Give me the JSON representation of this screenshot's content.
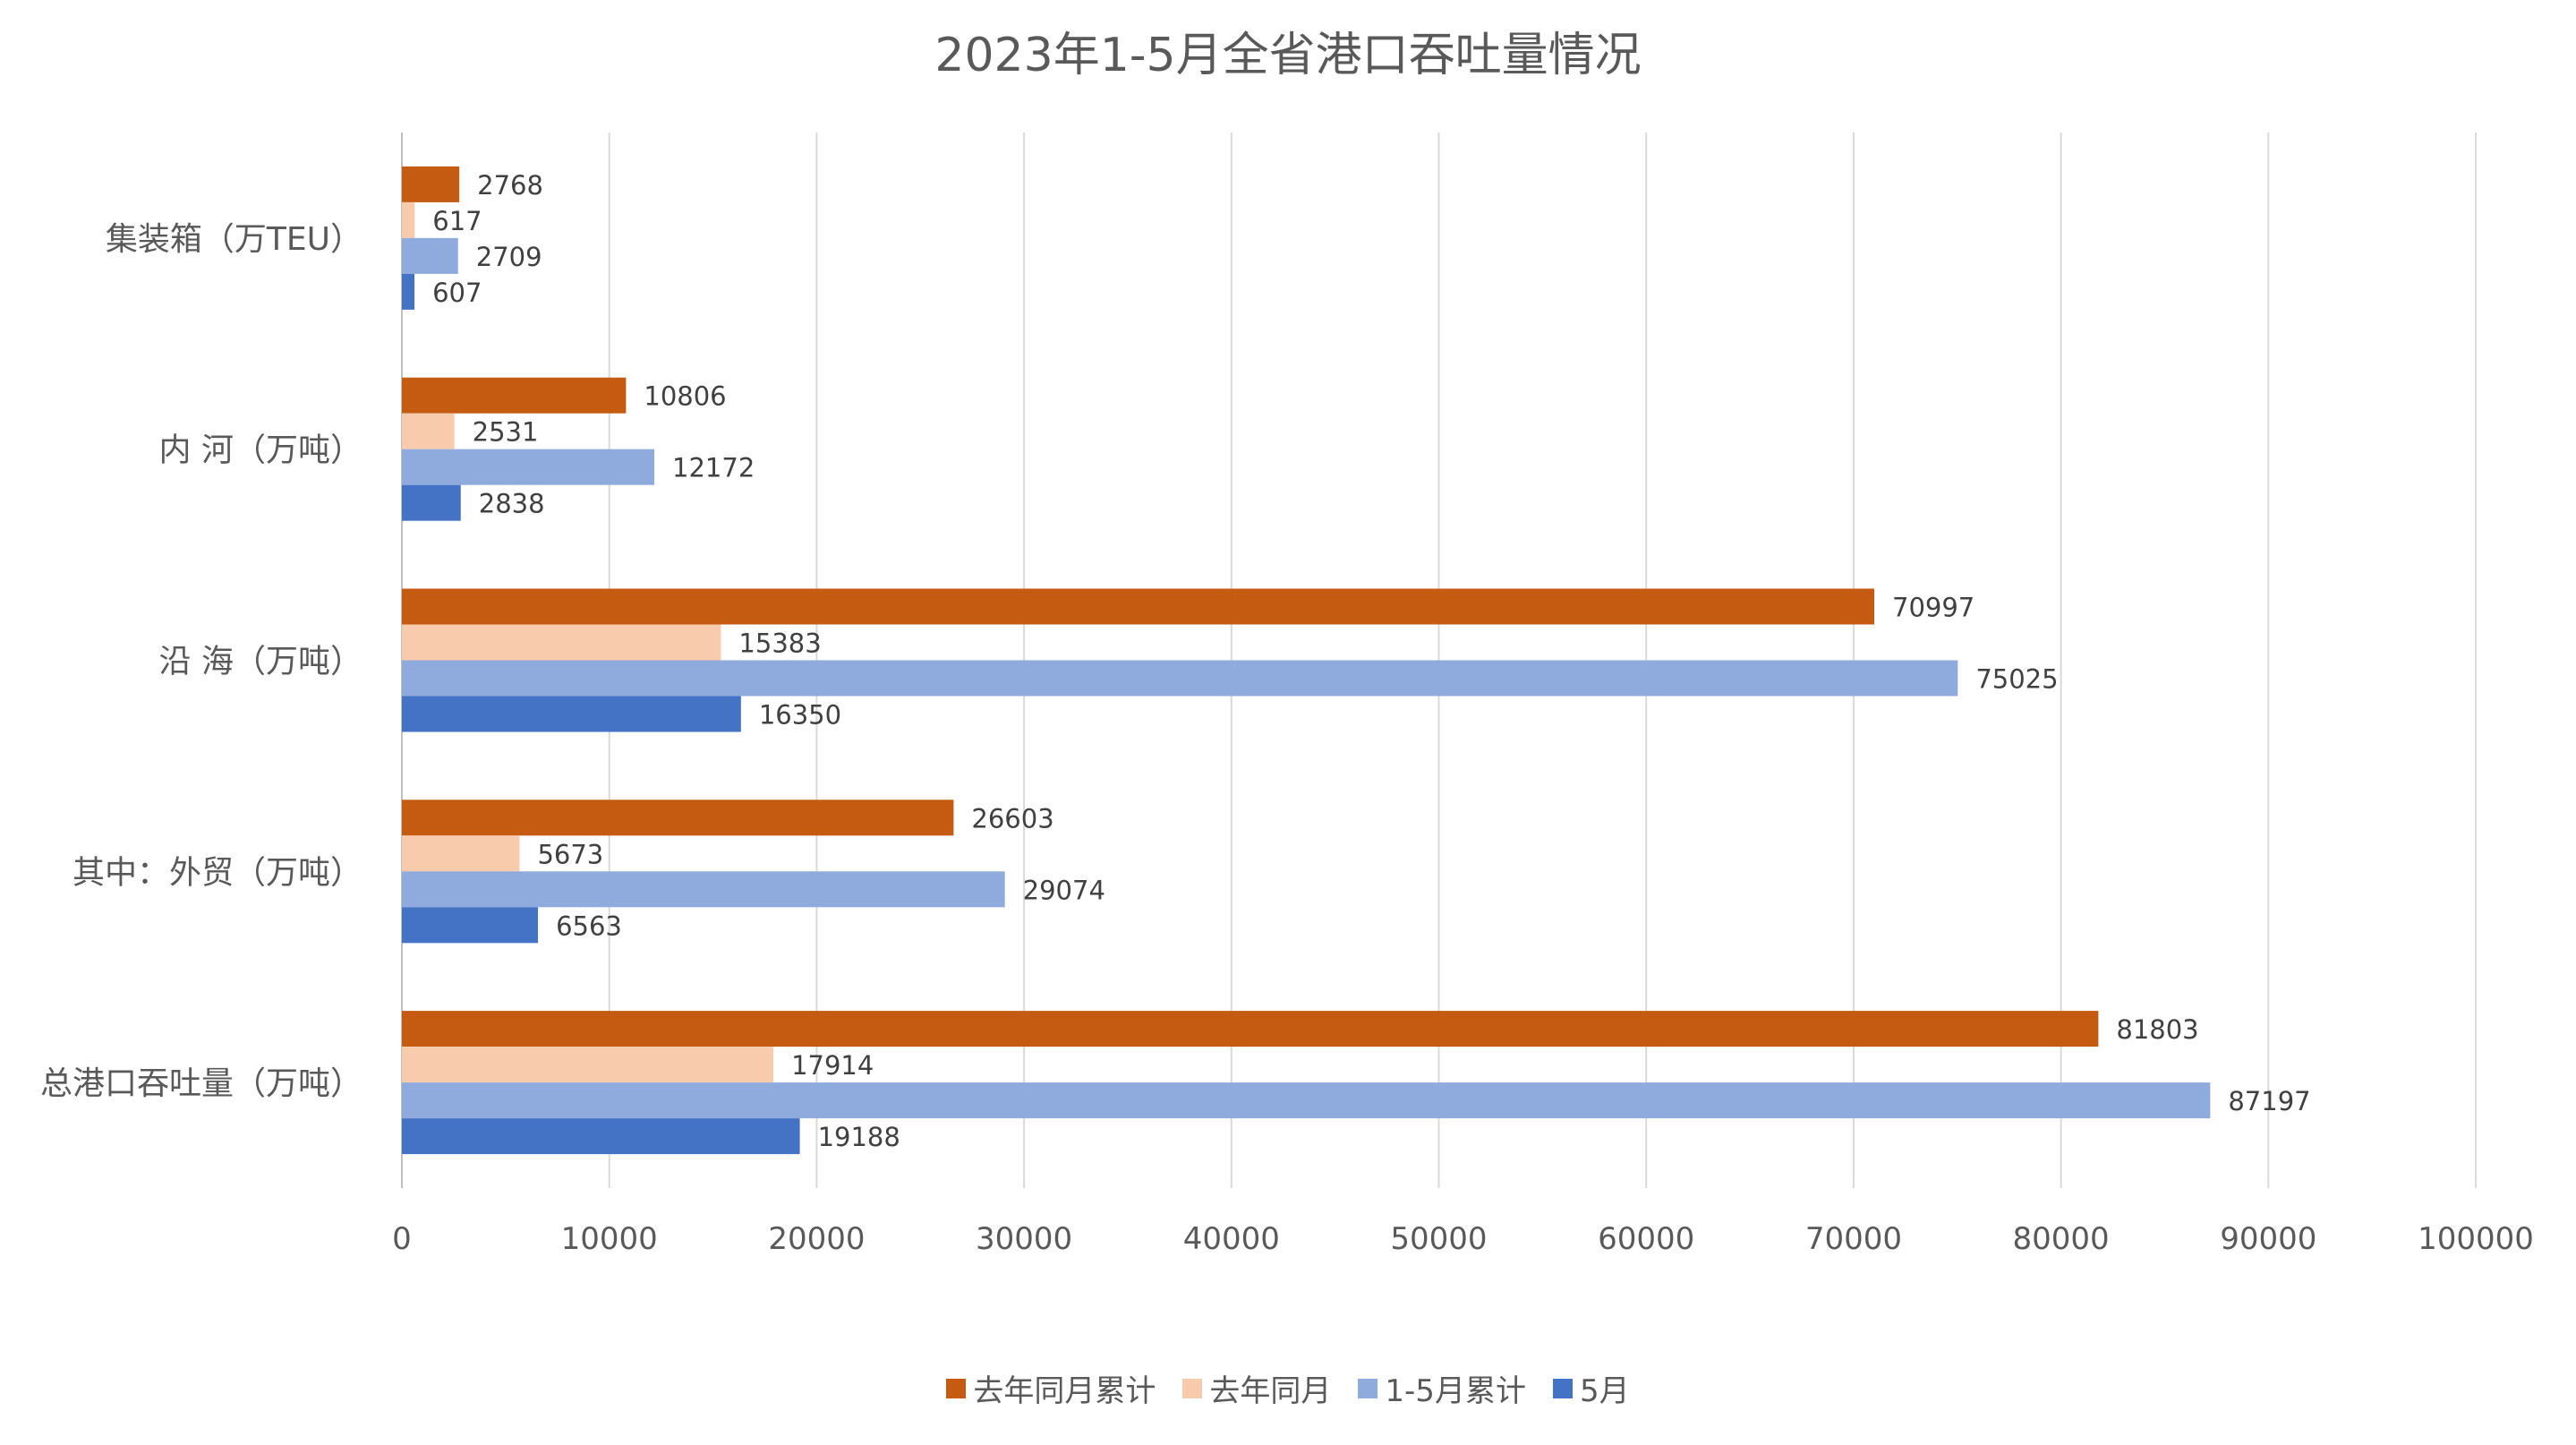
{
  "chart_data": {
    "type": "bar",
    "orientation": "horizontal",
    "title": "2023年1-5月全省港口吞吐量情况",
    "categories": [
      "集装箱（万TEU）",
      "内 河（万吨）",
      "沿 海（万吨）",
      "其中：外贸（万吨）",
      "总港口吞吐量（万吨）"
    ],
    "series": [
      {
        "name": "去年同月累计",
        "color": "#C55A11",
        "values": [
          2768,
          10806,
          70997,
          26603,
          81803
        ]
      },
      {
        "name": "去年同月",
        "color": "#F8CBAD",
        "values": [
          617,
          2531,
          15383,
          5673,
          17914
        ]
      },
      {
        "name": "1-5月累计",
        "color": "#8FAADC",
        "values": [
          2709,
          12172,
          75025,
          29074,
          87197
        ]
      },
      {
        "name": "5月",
        "color": "#4472C4",
        "values": [
          607,
          2838,
          16350,
          6563,
          19188
        ]
      }
    ],
    "xlim": [
      0,
      100000
    ],
    "xticks": [
      0,
      10000,
      20000,
      30000,
      40000,
      50000,
      60000,
      70000,
      80000,
      90000,
      100000
    ],
    "grid": true,
    "legend_position": "bottom"
  }
}
